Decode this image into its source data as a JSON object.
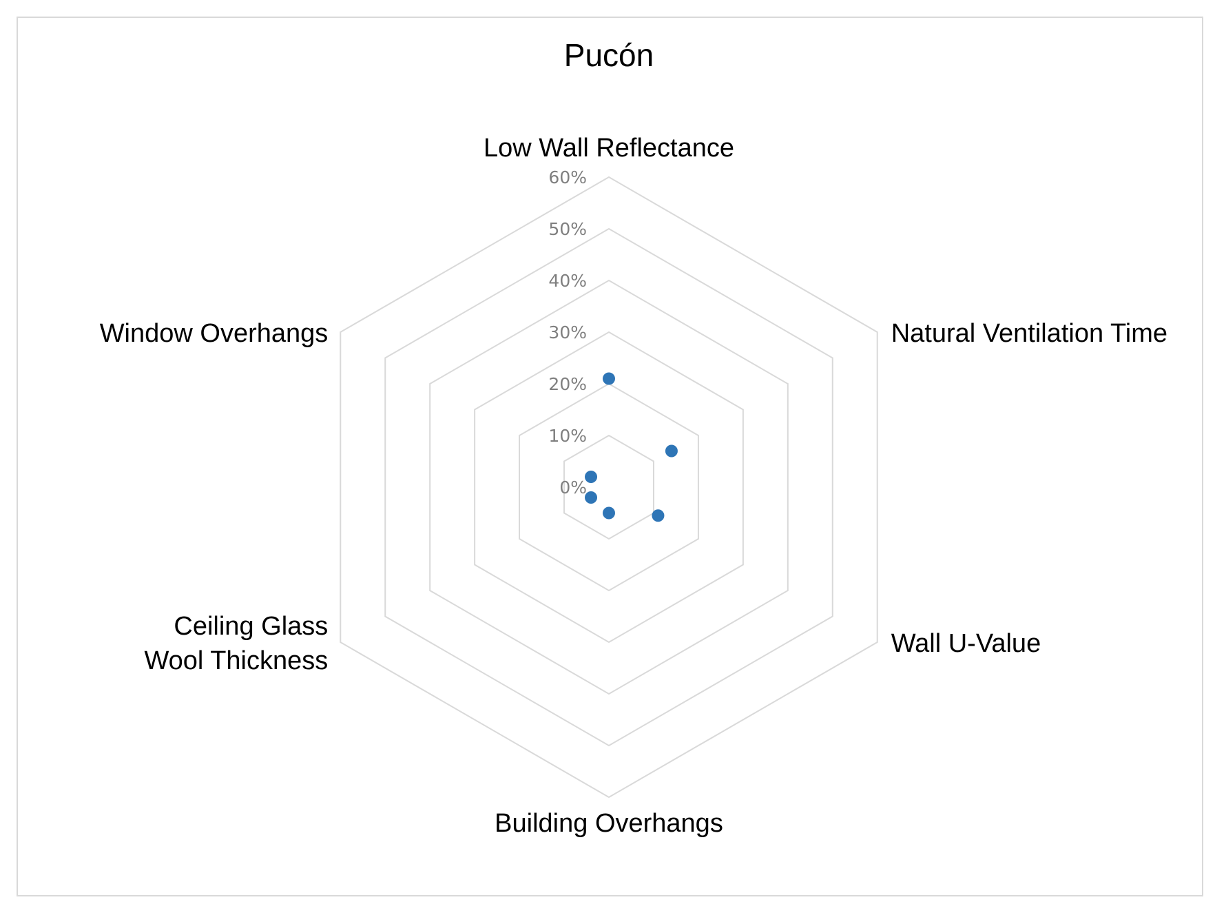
{
  "chart_data": {
    "type": "radar",
    "title": "Pucón",
    "axes": [
      [
        "Low Wall Reflectance"
      ],
      [
        "Natural Ventilation Time"
      ],
      [
        "Wall U-Value"
      ],
      [
        "Building Overhangs"
      ],
      [
        "Ceiling Glass",
        "Wool Thickness"
      ],
      [
        "Window Overhangs"
      ]
    ],
    "radial_ticks": [
      "0%",
      "10%",
      "20%",
      "30%",
      "40%",
      "50%",
      "60%"
    ],
    "rmin": 0,
    "rmax": 0.6,
    "grid": true,
    "series": [
      {
        "values": [
          0.21,
          0.14,
          0.11,
          0.05,
          0.04,
          0.04
        ],
        "color": "#2e75b6",
        "marker": "circle",
        "line": false
      }
    ],
    "legend": "none"
  }
}
